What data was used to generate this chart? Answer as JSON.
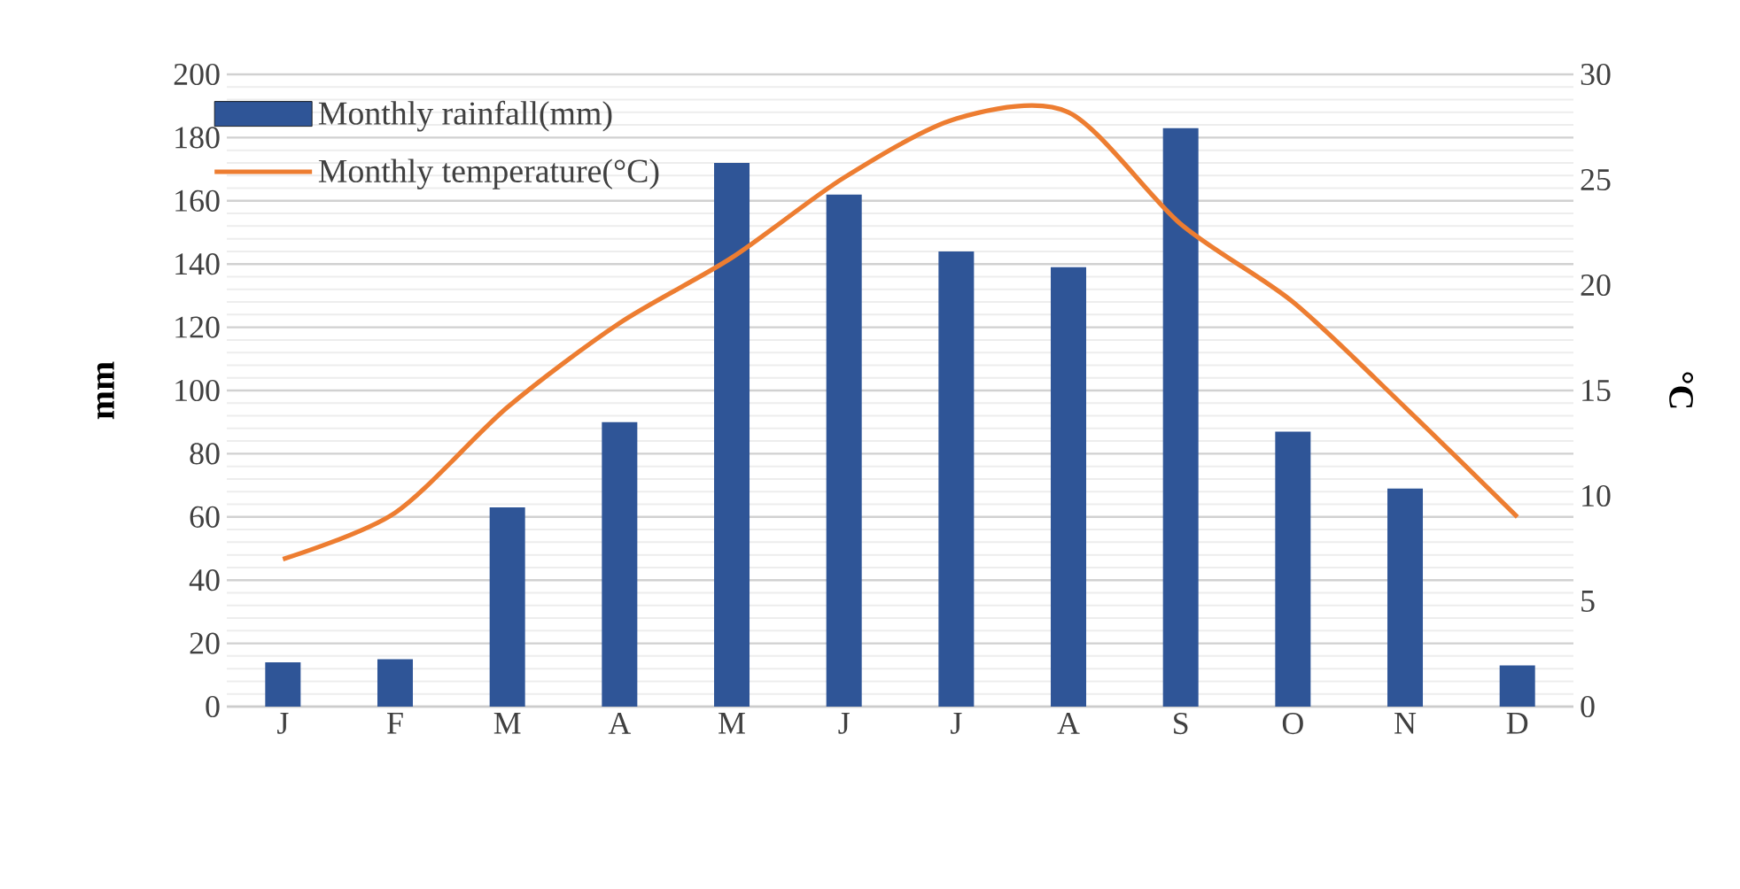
{
  "chart_data": {
    "type": "bar",
    "categories": [
      "J",
      "F",
      "M",
      "A",
      "M",
      "J",
      "J",
      "A",
      "S",
      "O",
      "N",
      "D"
    ],
    "ylabel": "mm",
    "y2label": "°C",
    "ylim": [
      0,
      200
    ],
    "yticks": [
      0,
      20,
      40,
      60,
      80,
      100,
      120,
      140,
      160,
      180,
      200
    ],
    "y2lim": [
      0,
      30
    ],
    "y2ticks": [
      0,
      5,
      10,
      15,
      20,
      25,
      30
    ],
    "grid": "y",
    "legend": "top left",
    "series": [
      {
        "name": "Monthly rainfall(mm)",
        "color": "#2f5597",
        "values": [
          14,
          15,
          63,
          90,
          172,
          162,
          144,
          139,
          183,
          87,
          69,
          13
        ]
      },
      {
        "name": "Monthly temperature(°C)",
        "type": "line",
        "axis": "y2",
        "color": "#ed7d31",
        "values": [
          7,
          9.2,
          14.2,
          18.2,
          21.3,
          25.1,
          27.9,
          28.2,
          22.9,
          19.2,
          14.2,
          9
        ]
      }
    ]
  }
}
